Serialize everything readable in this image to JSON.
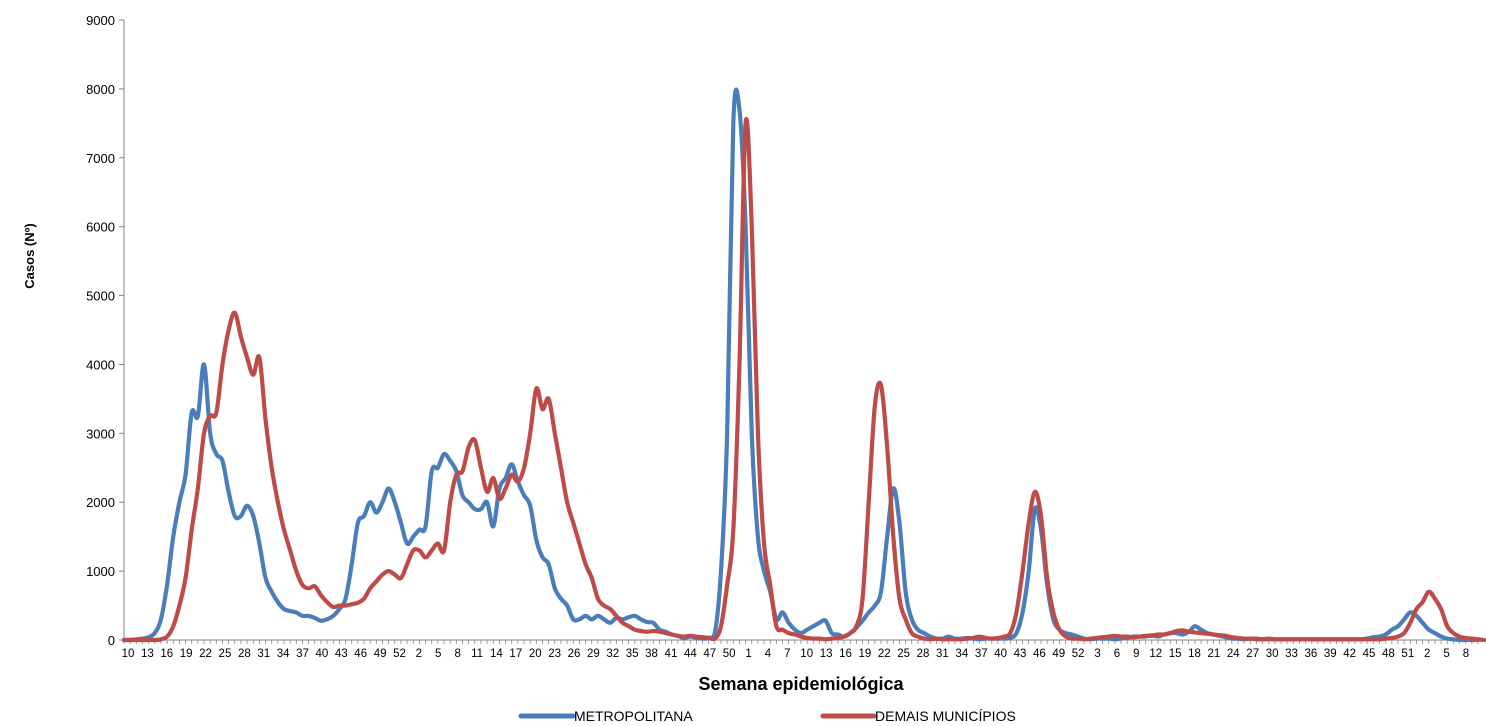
{
  "chart_data": {
    "type": "line",
    "title": "",
    "xlabel": "Semana epidemiológica",
    "ylabel": "Casos (Nº)",
    "ylim": [
      0,
      9000
    ],
    "yticks": [
      0,
      1000,
      2000,
      3000,
      4000,
      5000,
      6000,
      7000,
      8000,
      9000
    ],
    "grid": false,
    "legend_position": "bottom",
    "x_tick_labels": [
      "10",
      "13",
      "16",
      "19",
      "22",
      "25",
      "28",
      "31",
      "34",
      "37",
      "40",
      "43",
      "46",
      "49",
      "52",
      "2",
      "5",
      "8",
      "11",
      "14",
      "17",
      "20",
      "23",
      "26",
      "29",
      "32",
      "35",
      "38",
      "41",
      "44",
      "47",
      "50",
      "1",
      "4",
      "7",
      "10",
      "13",
      "16",
      "19",
      "22",
      "25",
      "28",
      "31",
      "34",
      "37",
      "40",
      "43",
      "46",
      "49",
      "52",
      "3",
      "6",
      "9",
      "12",
      "15",
      "18",
      "21",
      "24",
      "27",
      "30",
      "33",
      "36",
      "39",
      "42",
      "45",
      "48",
      "51",
      "2",
      "5",
      "8"
    ],
    "series": [
      {
        "name": "METROPOLITANA",
        "color": "#4a7ebb",
        "values": [
          0,
          0,
          10,
          20,
          40,
          100,
          300,
          800,
          1500,
          2000,
          2400,
          3300,
          3250,
          4000,
          3000,
          2700,
          2600,
          2150,
          1800,
          1800,
          1950,
          1800,
          1400,
          900,
          700,
          550,
          450,
          420,
          400,
          350,
          350,
          320,
          280,
          300,
          350,
          450,
          600,
          1100,
          1700,
          1800,
          2000,
          1850,
          2000,
          2200,
          2000,
          1700,
          1400,
          1500,
          1600,
          1650,
          2450,
          2500,
          2700,
          2600,
          2450,
          2100,
          2000,
          1900,
          1900,
          2000,
          1650,
          2200,
          2350,
          2550,
          2300,
          2100,
          1950,
          1450,
          1200,
          1100,
          750,
          600,
          500,
          300,
          300,
          350,
          300,
          350,
          300,
          250,
          320,
          300,
          330,
          350,
          300,
          260,
          250,
          150,
          120,
          80,
          60,
          30,
          50,
          30,
          20,
          30,
          100,
          1000,
          3000,
          7500,
          7700,
          6000,
          3000,
          1500,
          1000,
          700,
          300,
          400,
          250,
          150,
          100,
          150,
          200,
          250,
          280,
          100,
          80,
          50,
          100,
          180,
          280,
          400,
          500,
          700,
          1500,
          2200,
          1700,
          700,
          300,
          150,
          100,
          50,
          20,
          20,
          50,
          20,
          20,
          30,
          20,
          10,
          20,
          20,
          20,
          20,
          30,
          100,
          400,
          1000,
          1900,
          1600,
          800,
          300,
          150,
          100,
          80,
          50,
          20,
          10,
          20,
          20,
          20,
          10,
          20,
          30,
          50,
          50,
          50,
          70,
          50,
          80,
          100,
          100,
          80,
          120,
          200,
          150,
          100,
          80,
          60,
          40,
          20,
          20,
          10,
          20,
          10,
          10,
          10,
          10,
          10,
          10,
          10,
          10,
          10,
          10,
          10,
          10,
          10,
          10,
          10,
          10,
          10,
          10,
          20,
          40,
          50,
          80,
          150,
          200,
          300,
          400,
          350,
          250,
          150,
          100,
          50,
          20,
          10,
          0,
          0,
          0,
          0
        ]
      },
      {
        "name": "DEMAIS MUNICÍPIOS",
        "color": "#be4b48",
        "values": [
          0,
          0,
          0,
          0,
          0,
          0,
          10,
          50,
          200,
          500,
          900,
          1600,
          2200,
          3000,
          3250,
          3300,
          4000,
          4500,
          4750,
          4400,
          4100,
          3850,
          4100,
          3200,
          2500,
          2000,
          1600,
          1300,
          1000,
          800,
          750,
          780,
          650,
          550,
          480,
          500,
          500,
          520,
          540,
          600,
          750,
          850,
          950,
          1000,
          950,
          900,
          1100,
          1300,
          1300,
          1200,
          1300,
          1400,
          1300,
          2000,
          2400,
          2450,
          2800,
          2900,
          2500,
          2150,
          2350,
          2050,
          2200,
          2400,
          2300,
          2500,
          3000,
          3650,
          3350,
          3500,
          3000,
          2500,
          2000,
          1700,
          1400,
          1100,
          900,
          600,
          500,
          450,
          350,
          250,
          200,
          150,
          130,
          120,
          130,
          120,
          100,
          80,
          60,
          50,
          60,
          50,
          40,
          30,
          20,
          200,
          800,
          1600,
          4000,
          7500,
          6000,
          3000,
          1400,
          800,
          200,
          150,
          100,
          80,
          50,
          30,
          20,
          20,
          10,
          20,
          30,
          50,
          100,
          200,
          600,
          2000,
          3400,
          3700,
          2800,
          1500,
          600,
          300,
          100,
          50,
          20,
          10,
          20,
          10,
          10,
          10,
          10,
          20,
          30,
          50,
          30,
          20,
          30,
          50,
          100,
          400,
          1000,
          1700,
          2150,
          1800,
          900,
          400,
          150,
          50,
          20,
          20,
          10,
          20,
          30,
          40,
          50,
          60,
          50,
          50,
          40,
          50,
          60,
          60,
          80,
          80,
          100,
          130,
          140,
          120,
          110,
          100,
          90,
          80,
          70,
          60,
          40,
          30,
          20,
          20,
          20,
          10,
          20,
          10,
          10,
          10,
          10,
          10,
          10,
          10,
          10,
          10,
          10,
          10,
          10,
          10,
          10,
          10,
          10,
          10,
          10,
          20,
          30,
          50,
          100,
          250,
          450,
          550,
          700,
          600,
          450,
          200,
          100,
          50,
          30,
          20,
          10,
          0
        ]
      }
    ]
  }
}
